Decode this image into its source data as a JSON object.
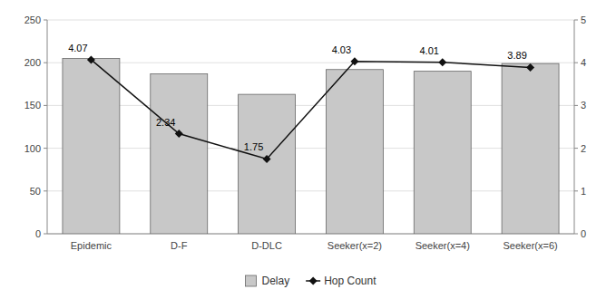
{
  "chart_data": {
    "type": "bar",
    "categories": [
      "Epidemic",
      "D-F",
      "D-DLC",
      "Seeker(x=2)",
      "Seeker(x=4)",
      "Seeker(x=6)"
    ],
    "series": [
      {
        "name": "Delay",
        "type": "bar",
        "color": "#c8c8c8",
        "values": [
          205,
          187,
          163,
          192,
          190,
          199
        ]
      },
      {
        "name": "Hop Count",
        "type": "line",
        "axis": "y2",
        "color": "#111111",
        "marker": "diamond",
        "line_style": "solid",
        "data_labels": true,
        "values": [
          4.07,
          2.34,
          1.75,
          4.03,
          4.01,
          3.89
        ]
      }
    ],
    "ylim": [
      0,
      250
    ],
    "yticks": [
      0,
      50,
      100,
      150,
      200,
      250
    ],
    "y2lim": [
      0,
      5
    ],
    "y2ticks": [
      0,
      1,
      2,
      3,
      4,
      5
    ],
    "grid": true,
    "legend": "bottom"
  }
}
